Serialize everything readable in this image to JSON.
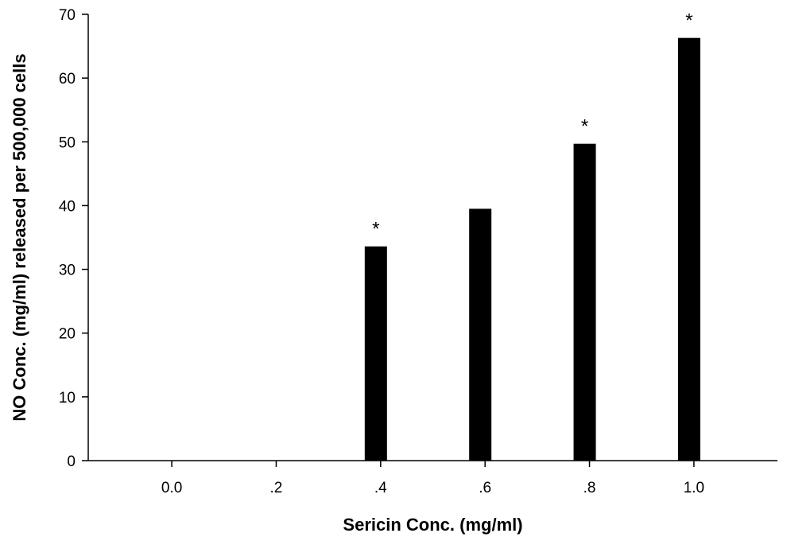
{
  "chart_data": {
    "type": "bar",
    "x": [
      0.0,
      0.2,
      0.4,
      0.6,
      0.8,
      1.0
    ],
    "x_tick_labels": [
      "0.0",
      ".2",
      ".4",
      ".6",
      ".8",
      "1.0"
    ],
    "bars": [
      {
        "x": 0.4,
        "value": 33.6,
        "significant": true
      },
      {
        "x": 0.6,
        "value": 39.5,
        "significant": false
      },
      {
        "x": 0.8,
        "value": 49.7,
        "significant": true
      },
      {
        "x": 1.0,
        "value": 66.3,
        "significant": true
      }
    ],
    "significance_marker": "*",
    "xlabel": "Sericin Conc. (mg/ml)",
    "ylabel": "NO Conc. (mg/ml) released per 500,000 cells",
    "ylim": [
      0,
      70
    ],
    "y_ticks": [
      0,
      10,
      20,
      30,
      40,
      50,
      60,
      70
    ],
    "xlim": [
      -0.16,
      1.16
    ],
    "grid": false,
    "bar_color": "#000000"
  }
}
